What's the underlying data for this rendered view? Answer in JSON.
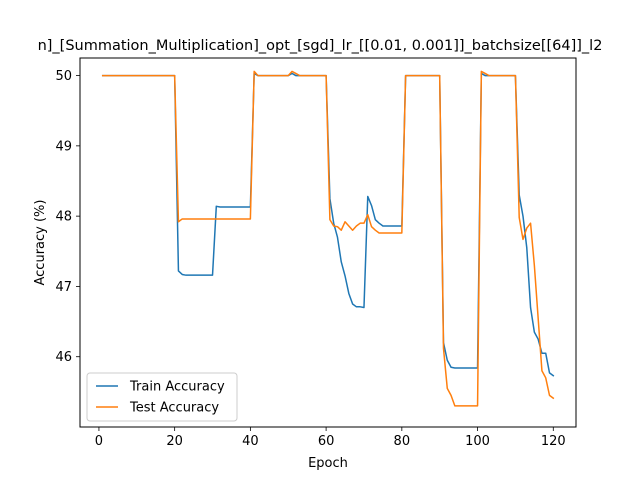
{
  "chart_data": {
    "type": "line",
    "title": "n]_[Summation_Multiplication]_opt_[sgd]_lr_[[0.01, 0.001]]_batchsize[[64]]_l2",
    "xlabel": "Epoch",
    "ylabel": "Accuracy (%)",
    "xlim": [
      -5,
      126
    ],
    "ylim": [
      45.0,
      50.25
    ],
    "x_ticks": [
      0,
      20,
      40,
      60,
      80,
      100,
      120
    ],
    "y_ticks": [
      46,
      47,
      48,
      49,
      50
    ],
    "grid": false,
    "legend_position": "lower-left",
    "series": [
      {
        "name": "Train Accuracy",
        "color": "#1f77b4",
        "x": [
          1,
          2,
          3,
          4,
          5,
          6,
          7,
          8,
          9,
          10,
          11,
          12,
          13,
          14,
          15,
          16,
          17,
          18,
          19,
          20,
          21,
          22,
          23,
          24,
          25,
          26,
          27,
          28,
          29,
          30,
          31,
          32,
          33,
          34,
          35,
          36,
          37,
          38,
          39,
          40,
          41,
          42,
          43,
          44,
          45,
          46,
          47,
          48,
          49,
          50,
          51,
          52,
          53,
          54,
          55,
          56,
          57,
          58,
          59,
          60,
          61,
          62,
          63,
          64,
          65,
          66,
          67,
          68,
          69,
          70,
          71,
          72,
          73,
          74,
          75,
          76,
          77,
          78,
          79,
          80,
          81,
          82,
          83,
          84,
          85,
          86,
          87,
          88,
          89,
          90,
          91,
          92,
          93,
          94,
          95,
          96,
          97,
          98,
          99,
          100,
          101,
          102,
          103,
          104,
          105,
          106,
          107,
          108,
          109,
          110,
          111,
          112,
          113,
          114,
          115,
          116,
          117,
          118,
          119,
          120
        ],
        "y": [
          50,
          50,
          50,
          50,
          50,
          50,
          50,
          50,
          50,
          50,
          50,
          50,
          50,
          50,
          50,
          50,
          50,
          50,
          50,
          50,
          47.22,
          47.17,
          47.16,
          47.16,
          47.16,
          47.16,
          47.16,
          47.16,
          47.16,
          47.16,
          48.14,
          48.13,
          48.13,
          48.13,
          48.13,
          48.13,
          48.13,
          48.13,
          48.13,
          48.13,
          50.03,
          50,
          50,
          50,
          50,
          50,
          50,
          50,
          50,
          50,
          50.03,
          50,
          50,
          50,
          50,
          50,
          50,
          50,
          50,
          50,
          48.25,
          47.9,
          47.7,
          47.35,
          47.15,
          46.9,
          46.75,
          46.71,
          46.71,
          46.7,
          48.28,
          48.15,
          47.95,
          47.9,
          47.86,
          47.86,
          47.86,
          47.86,
          47.86,
          47.86,
          50,
          50,
          50,
          50,
          50,
          50,
          50,
          50,
          50,
          50,
          46.2,
          45.95,
          45.85,
          45.84,
          45.84,
          45.84,
          45.84,
          45.84,
          45.84,
          45.84,
          50.03,
          50,
          50,
          50,
          50,
          50,
          50,
          50,
          50,
          50,
          48.3,
          48.0,
          47.55,
          46.7,
          46.35,
          46.25,
          46.05,
          46.05,
          45.77,
          45.73
        ]
      },
      {
        "name": "Test Accuracy",
        "color": "#ff7f0e",
        "x": [
          1,
          2,
          3,
          4,
          5,
          6,
          7,
          8,
          9,
          10,
          11,
          12,
          13,
          14,
          15,
          16,
          17,
          18,
          19,
          20,
          21,
          22,
          23,
          24,
          25,
          26,
          27,
          28,
          29,
          30,
          31,
          32,
          33,
          34,
          35,
          36,
          37,
          38,
          39,
          40,
          41,
          42,
          43,
          44,
          45,
          46,
          47,
          48,
          49,
          50,
          51,
          52,
          53,
          54,
          55,
          56,
          57,
          58,
          59,
          60,
          61,
          62,
          63,
          64,
          65,
          66,
          67,
          68,
          69,
          70,
          71,
          72,
          73,
          74,
          75,
          76,
          77,
          78,
          79,
          80,
          81,
          82,
          83,
          84,
          85,
          86,
          87,
          88,
          89,
          90,
          91,
          92,
          93,
          94,
          95,
          96,
          97,
          98,
          99,
          100,
          101,
          102,
          103,
          104,
          105,
          106,
          107,
          108,
          109,
          110,
          111,
          112,
          113,
          114,
          115,
          116,
          117,
          118,
          119,
          120
        ],
        "y": [
          50,
          50,
          50,
          50,
          50,
          50,
          50,
          50,
          50,
          50,
          50,
          50,
          50,
          50,
          50,
          50,
          50,
          50,
          50,
          50,
          47.92,
          47.96,
          47.96,
          47.96,
          47.96,
          47.96,
          47.96,
          47.96,
          47.96,
          47.96,
          47.96,
          47.96,
          47.96,
          47.96,
          47.96,
          47.96,
          47.96,
          47.96,
          47.96,
          47.96,
          50.06,
          50,
          50,
          50,
          50,
          50,
          50,
          50,
          50,
          50,
          50.06,
          50.03,
          50,
          50,
          50,
          50,
          50,
          50,
          50,
          50,
          47.95,
          47.86,
          47.85,
          47.8,
          47.92,
          47.86,
          47.8,
          47.86,
          47.9,
          47.9,
          48.02,
          47.85,
          47.8,
          47.76,
          47.76,
          47.76,
          47.76,
          47.76,
          47.76,
          47.76,
          50,
          50,
          50,
          50,
          50,
          50,
          50,
          50,
          50,
          50,
          46.12,
          45.55,
          45.45,
          45.3,
          45.3,
          45.3,
          45.3,
          45.3,
          45.3,
          45.3,
          50.06,
          50.03,
          50,
          50,
          50,
          50,
          50,
          50,
          50,
          50,
          47.98,
          47.67,
          47.83,
          47.9,
          47.3,
          46.55,
          45.8,
          45.7,
          45.45,
          45.41
        ]
      }
    ]
  }
}
